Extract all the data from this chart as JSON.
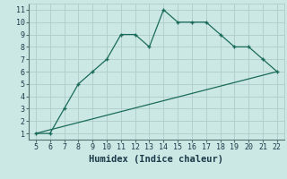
{
  "xlabel": "Humidex (Indice chaleur)",
  "line1_x": [
    5,
    6,
    7,
    8,
    9,
    10,
    11,
    12,
    13,
    14,
    15,
    16,
    17,
    18,
    19,
    20,
    21,
    22
  ],
  "line1_y": [
    1,
    1,
    3,
    5,
    6,
    7,
    9,
    9,
    8,
    11,
    10,
    10,
    10,
    9,
    8,
    8,
    7,
    6
  ],
  "line2_x": [
    5,
    22
  ],
  "line2_y": [
    1,
    6
  ],
  "color": "#1a6b5a",
  "bg_color": "#cce8e4",
  "grid_color": "#b0ccca",
  "xlim": [
    4.5,
    22.5
  ],
  "ylim": [
    0.5,
    11.5
  ],
  "xticks": [
    5,
    6,
    7,
    8,
    9,
    10,
    11,
    12,
    13,
    14,
    15,
    16,
    17,
    18,
    19,
    20,
    21,
    22
  ],
  "yticks": [
    1,
    2,
    3,
    4,
    5,
    6,
    7,
    8,
    9,
    10,
    11
  ],
  "tick_fontsize": 6,
  "label_fontsize": 7.5
}
